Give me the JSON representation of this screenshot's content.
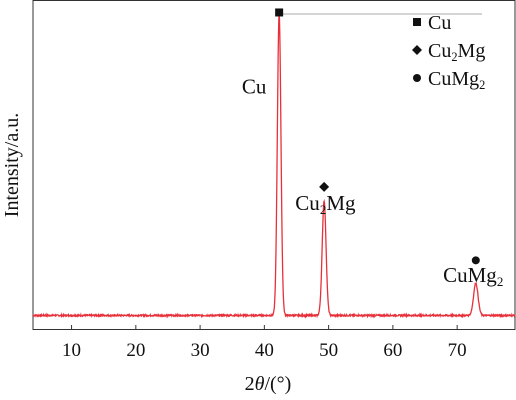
{
  "chart_data": {
    "type": "line",
    "xlabel_parts": {
      "pre": "2",
      "italic": "θ",
      "post": "/(°)"
    },
    "ylabel": "Intensity/a.u.",
    "xlim": [
      4,
      79
    ],
    "ylim": [
      0,
      100
    ],
    "x_ticks": [
      10,
      20,
      30,
      40,
      50,
      60,
      70
    ],
    "show_y_ticks": false,
    "grid": false,
    "legend_position": "top-right",
    "legend": [
      {
        "symbol": "square",
        "label": "Cu",
        "base": "Cu",
        "sub": ""
      },
      {
        "symbol": "diamond",
        "label": "Cu2Mg",
        "base": "Cu",
        "sub": "2",
        "tail": "Mg"
      },
      {
        "symbol": "circle",
        "label": "CuMg2",
        "base": "CuMg",
        "sub": "2",
        "tail": ""
      }
    ],
    "series": [
      {
        "color": "#e8303a",
        "baseline": 1.5,
        "noise": 0.25,
        "peaks": [
          {
            "center": 42.3,
            "height": 98.5,
            "width": 0.28
          },
          {
            "center": 49.3,
            "height": 37.5,
            "width": 0.3
          },
          {
            "center": 72.9,
            "height": 10.5,
            "width": 0.35
          }
        ]
      }
    ],
    "annotations": [
      {
        "phase": "Cu",
        "x": 42.3,
        "y": 100.5,
        "symbol": "square",
        "label_parts": {
          "base": "Cu",
          "sub": "",
          "tail": ""
        },
        "label_x": 38.4,
        "label_y": 74
      },
      {
        "phase": "Cu2Mg",
        "x": 49.3,
        "y": 43.5,
        "symbol": "diamond",
        "label_parts": {
          "base": "Cu",
          "sub": "2",
          "tail": "Mg"
        },
        "label_x": 49.5,
        "label_y": 36
      },
      {
        "phase": "CuMg2",
        "x": 72.9,
        "y": 19.5,
        "symbol": "circle",
        "label_parts": {
          "base": "CuMg",
          "sub": "2",
          "tail": ""
        },
        "label_x": 72.5,
        "label_y": 12.5
      }
    ]
  }
}
